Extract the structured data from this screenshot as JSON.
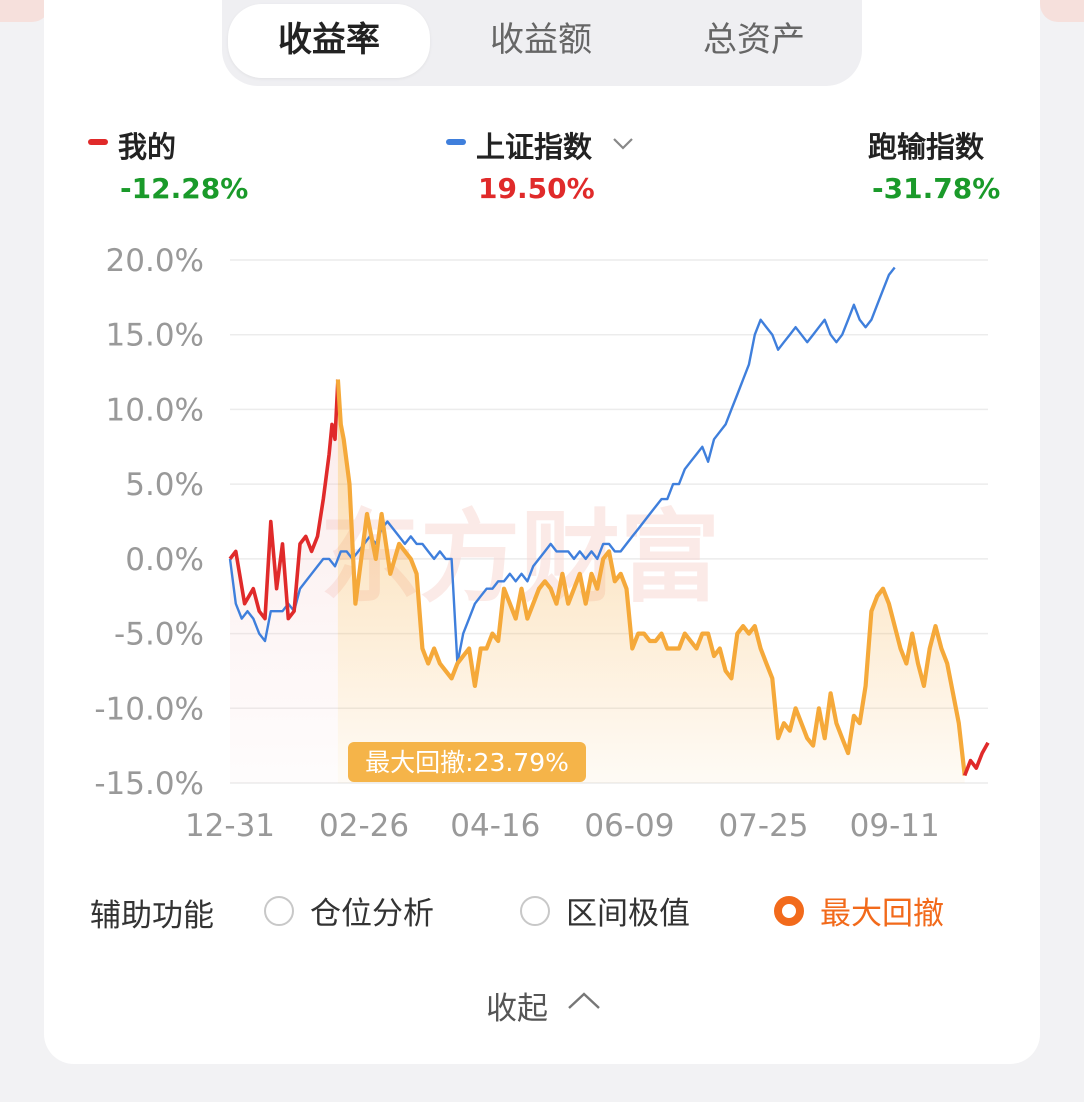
{
  "tabs": [
    {
      "label": "收益率",
      "active": true
    },
    {
      "label": "收益额",
      "active": false
    },
    {
      "label": "总资产",
      "active": false
    }
  ],
  "legend": {
    "mine": {
      "name": "我的",
      "value": "-12.28%",
      "color": "#e02a2a",
      "value_color": "#1a9a2a"
    },
    "index": {
      "name": "上证指数",
      "value": "19.50%",
      "color": "#3f7fdc",
      "value_color": "#e02a2a"
    },
    "diff": {
      "name": "跑输指数",
      "value": "-31.78%",
      "value_color": "#1a9a2a"
    }
  },
  "watermark": "东方财富",
  "drawdown_label": "最大回撤:23.79%",
  "aux": {
    "label": "辅助功能",
    "options": [
      {
        "label": "仓位分析",
        "selected": false
      },
      {
        "label": "区间极值",
        "selected": false
      },
      {
        "label": "最大回撤",
        "selected": true
      }
    ]
  },
  "collapse_label": "收起",
  "colors": {
    "mine": "#e02a2a",
    "index": "#3f7fdc",
    "drawdown": "#f5a93a",
    "accent": "#f26a1b"
  },
  "chart_data": {
    "type": "line",
    "ylim": [
      -15,
      20
    ],
    "yticks": [
      "20.0%",
      "15.0%",
      "10.0%",
      "5.0%",
      "0.0%",
      "-5.0%",
      "-10.0%",
      "-15.0%"
    ],
    "ytick_values": [
      20,
      15,
      10,
      5,
      0,
      -5,
      -10,
      -15
    ],
    "xtick_labels": [
      "12-31",
      "02-26",
      "04-16",
      "06-09",
      "07-25",
      "09-11"
    ],
    "n_points": 200,
    "xtick_indices": [
      0,
      34,
      68,
      102,
      136,
      170
    ],
    "drawdown": {
      "start_index": 31,
      "end_index": 192,
      "value": "23.79%"
    },
    "series": [
      {
        "name": "我的",
        "points": [
          [
            0,
            0
          ],
          [
            2,
            0.5
          ],
          [
            5,
            -3
          ],
          [
            8,
            -2
          ],
          [
            10,
            -3.5
          ],
          [
            12,
            -4
          ],
          [
            14,
            2.5
          ],
          [
            16,
            -2
          ],
          [
            18,
            1
          ],
          [
            20,
            -4
          ],
          [
            22,
            -3.5
          ],
          [
            24,
            1
          ],
          [
            26,
            1.5
          ],
          [
            28,
            0.5
          ],
          [
            30,
            1.5
          ],
          [
            32,
            4
          ],
          [
            34,
            7
          ],
          [
            35,
            9
          ],
          [
            36,
            8
          ],
          [
            37,
            12
          ],
          [
            38,
            9
          ],
          [
            39,
            8
          ],
          [
            41,
            5
          ],
          [
            43,
            -3
          ],
          [
            45,
            0
          ],
          [
            47,
            3
          ],
          [
            50,
            0
          ],
          [
            52,
            3
          ],
          [
            55,
            -1
          ],
          [
            58,
            1
          ],
          [
            60,
            0.5
          ],
          [
            62,
            0
          ],
          [
            64,
            -1
          ],
          [
            66,
            -6
          ],
          [
            68,
            -7
          ],
          [
            70,
            -6
          ],
          [
            72,
            -7
          ],
          [
            74,
            -7.5
          ],
          [
            76,
            -8
          ],
          [
            78,
            -7
          ],
          [
            80,
            -6.5
          ],
          [
            82,
            -6
          ],
          [
            84,
            -8.5
          ],
          [
            86,
            -6
          ],
          [
            88,
            -6
          ],
          [
            90,
            -5
          ],
          [
            92,
            -5.5
          ],
          [
            94,
            -2
          ],
          [
            96,
            -3
          ],
          [
            98,
            -4
          ],
          [
            100,
            -2
          ],
          [
            102,
            -4
          ],
          [
            104,
            -3
          ],
          [
            106,
            -2
          ],
          [
            108,
            -1.5
          ],
          [
            110,
            -2
          ],
          [
            112,
            -3
          ],
          [
            114,
            -1
          ],
          [
            116,
            -3
          ],
          [
            118,
            -2
          ],
          [
            120,
            -1
          ],
          [
            122,
            -3
          ],
          [
            124,
            -1
          ],
          [
            126,
            -2
          ],
          [
            128,
            0
          ],
          [
            130,
            0.5
          ],
          [
            132,
            -1.5
          ],
          [
            134,
            -1
          ],
          [
            136,
            -2
          ],
          [
            138,
            -6
          ],
          [
            140,
            -5
          ],
          [
            142,
            -5
          ],
          [
            144,
            -5.5
          ],
          [
            146,
            -5.5
          ],
          [
            148,
            -5
          ],
          [
            150,
            -6
          ],
          [
            152,
            -6
          ],
          [
            154,
            -6
          ],
          [
            156,
            -5
          ],
          [
            158,
            -5.5
          ],
          [
            160,
            -6
          ],
          [
            162,
            -5
          ],
          [
            164,
            -5
          ],
          [
            166,
            -6.5
          ],
          [
            168,
            -6
          ],
          [
            170,
            -7.5
          ],
          [
            172,
            -8
          ],
          [
            174,
            -5
          ],
          [
            176,
            -4.5
          ],
          [
            178,
            -5
          ],
          [
            180,
            -4.5
          ],
          [
            182,
            -6
          ],
          [
            184,
            -7
          ],
          [
            186,
            -8
          ],
          [
            188,
            -12
          ],
          [
            190,
            -11
          ],
          [
            192,
            -11.5
          ],
          [
            194,
            -10
          ],
          [
            196,
            -11
          ],
          [
            198,
            -12
          ],
          [
            200,
            -12.5
          ],
          [
            202,
            -10
          ],
          [
            204,
            -12
          ],
          [
            206,
            -9
          ],
          [
            208,
            -11
          ],
          [
            210,
            -12
          ],
          [
            212,
            -13
          ],
          [
            214,
            -10.5
          ],
          [
            216,
            -11
          ],
          [
            218,
            -8.5
          ],
          [
            220,
            -3.5
          ],
          [
            222,
            -2.5
          ],
          [
            224,
            -2
          ],
          [
            226,
            -3
          ],
          [
            228,
            -4.5
          ],
          [
            230,
            -6
          ],
          [
            232,
            -7
          ],
          [
            234,
            -5
          ],
          [
            236,
            -7
          ],
          [
            238,
            -8.5
          ],
          [
            240,
            -6
          ],
          [
            242,
            -4.5
          ],
          [
            244,
            -6
          ],
          [
            246,
            -7
          ],
          [
            248,
            -9
          ],
          [
            250,
            -11
          ],
          [
            252,
            -14.5
          ],
          [
            254,
            -13.5
          ],
          [
            256,
            -14
          ],
          [
            258,
            -13
          ],
          [
            260,
            -12.3
          ]
        ]
      },
      {
        "name": "上证指数",
        "points": [
          [
            0,
            0
          ],
          [
            2,
            -3
          ],
          [
            4,
            -4
          ],
          [
            6,
            -3.5
          ],
          [
            8,
            -4
          ],
          [
            10,
            -5
          ],
          [
            12,
            -5.5
          ],
          [
            14,
            -3.5
          ],
          [
            16,
            -3.5
          ],
          [
            18,
            -3.5
          ],
          [
            20,
            -3
          ],
          [
            22,
            -3.5
          ],
          [
            24,
            -2
          ],
          [
            26,
            -1.5
          ],
          [
            28,
            -1
          ],
          [
            30,
            -0.5
          ],
          [
            32,
            0
          ],
          [
            34,
            0
          ],
          [
            36,
            -0.5
          ],
          [
            38,
            0.5
          ],
          [
            40,
            0.5
          ],
          [
            42,
            0
          ],
          [
            44,
            0.5
          ],
          [
            46,
            1
          ],
          [
            48,
            1.5
          ],
          [
            50,
            1
          ],
          [
            52,
            2
          ],
          [
            54,
            2.5
          ],
          [
            56,
            2
          ],
          [
            58,
            1.5
          ],
          [
            60,
            1
          ],
          [
            62,
            1.5
          ],
          [
            64,
            1
          ],
          [
            66,
            1
          ],
          [
            68,
            0.5
          ],
          [
            70,
            0
          ],
          [
            72,
            0.5
          ],
          [
            74,
            0
          ],
          [
            76,
            0
          ],
          [
            78,
            -7
          ],
          [
            80,
            -5
          ],
          [
            82,
            -4
          ],
          [
            84,
            -3
          ],
          [
            86,
            -2.5
          ],
          [
            88,
            -2
          ],
          [
            90,
            -2
          ],
          [
            92,
            -1.5
          ],
          [
            94,
            -1.5
          ],
          [
            96,
            -1
          ],
          [
            98,
            -1.5
          ],
          [
            100,
            -1
          ],
          [
            102,
            -1.5
          ],
          [
            104,
            -0.5
          ],
          [
            106,
            0
          ],
          [
            108,
            0.5
          ],
          [
            110,
            1
          ],
          [
            112,
            0.5
          ],
          [
            114,
            0.5
          ],
          [
            116,
            0.5
          ],
          [
            118,
            0
          ],
          [
            120,
            0.5
          ],
          [
            122,
            0
          ],
          [
            124,
            0.5
          ],
          [
            126,
            0
          ],
          [
            128,
            1
          ],
          [
            130,
            1
          ],
          [
            132,
            0.5
          ],
          [
            134,
            0.5
          ],
          [
            136,
            1
          ],
          [
            138,
            1.5
          ],
          [
            140,
            2
          ],
          [
            142,
            2.5
          ],
          [
            144,
            3
          ],
          [
            146,
            3.5
          ],
          [
            148,
            4
          ],
          [
            150,
            4
          ],
          [
            152,
            5
          ],
          [
            154,
            5
          ],
          [
            156,
            6
          ],
          [
            158,
            6.5
          ],
          [
            160,
            7
          ],
          [
            162,
            7.5
          ],
          [
            164,
            6.5
          ],
          [
            166,
            8
          ],
          [
            168,
            8.5
          ],
          [
            170,
            9
          ],
          [
            172,
            10
          ],
          [
            174,
            11
          ],
          [
            176,
            12
          ],
          [
            178,
            13
          ],
          [
            180,
            15
          ],
          [
            182,
            16
          ],
          [
            184,
            15.5
          ],
          [
            186,
            15
          ],
          [
            188,
            14
          ],
          [
            190,
            14.5
          ],
          [
            192,
            15
          ],
          [
            194,
            15.5
          ],
          [
            196,
            15
          ],
          [
            198,
            14.5
          ],
          [
            200,
            15
          ],
          [
            202,
            15.5
          ],
          [
            204,
            16
          ],
          [
            206,
            15
          ],
          [
            208,
            14.5
          ],
          [
            210,
            15
          ],
          [
            212,
            16
          ],
          [
            214,
            17
          ],
          [
            216,
            16
          ],
          [
            218,
            15.5
          ],
          [
            220,
            16
          ],
          [
            222,
            17
          ],
          [
            224,
            18
          ],
          [
            226,
            19
          ],
          [
            228,
            19.5
          ]
        ]
      }
    ]
  }
}
